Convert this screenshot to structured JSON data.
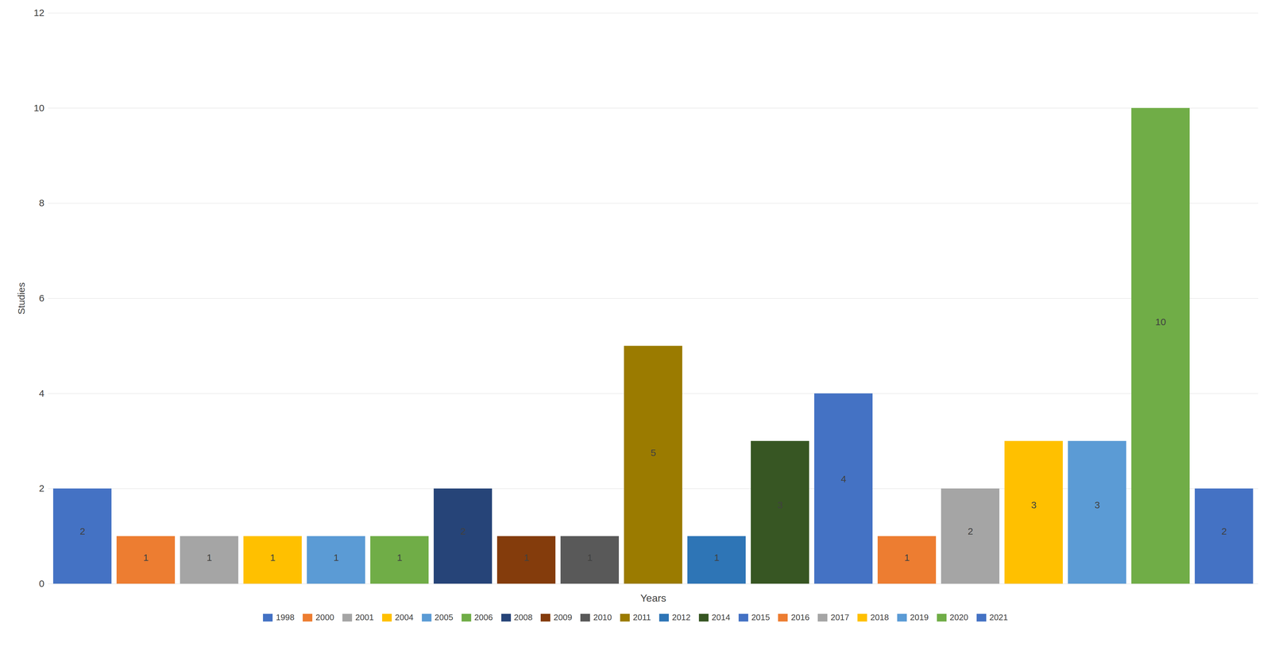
{
  "chart_data": {
    "type": "bar",
    "xlabel": "Years",
    "ylabel": "Studies",
    "categories": [
      "1998",
      "2000",
      "2001",
      "2004",
      "2005",
      "2006",
      "2008",
      "2009",
      "2010",
      "2011",
      "2012",
      "2014",
      "2015",
      "2016",
      "2017",
      "2018",
      "2019",
      "2020",
      "2021"
    ],
    "values": [
      2,
      1,
      1,
      1,
      1,
      1,
      2,
      1,
      1,
      5,
      1,
      3,
      4,
      1,
      2,
      3,
      3,
      10,
      2
    ],
    "colors": [
      "#4472C4",
      "#ED7D31",
      "#A5A5A5",
      "#FFC000",
      "#5B9BD5",
      "#70AD47",
      "#264478",
      "#843C0C",
      "#595959",
      "#9B7B00",
      "#2E75B6",
      "#375623",
      "#4472C4",
      "#ED7D31",
      "#A5A5A5",
      "#FFC000",
      "#5B9BD5",
      "#70AD47",
      "#4472C4"
    ],
    "ylim": [
      0,
      12
    ],
    "yticks": [
      0,
      2,
      4,
      6,
      8,
      10,
      12
    ],
    "grid": true,
    "data_labels": true,
    "tick_labels": "y",
    "legend": "bottom"
  }
}
